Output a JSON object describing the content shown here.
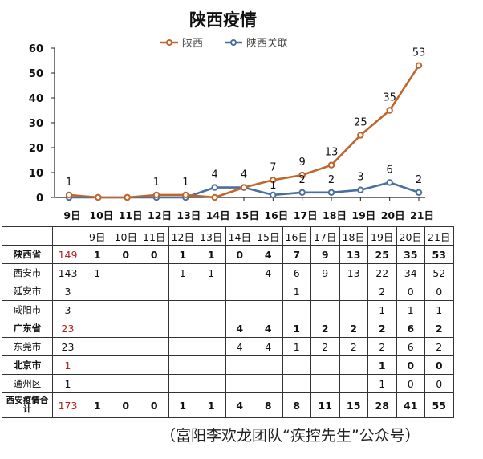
{
  "chart_data": {
    "type": "line",
    "title": "陕西疫情",
    "categories": [
      "9日",
      "10日",
      "11日",
      "12日",
      "13日",
      "14日",
      "15日",
      "16日",
      "17日",
      "18日",
      "19日",
      "20日",
      "21日"
    ],
    "ylim": [
      0,
      60
    ],
    "yticks": [
      0,
      10,
      20,
      30,
      40,
      50,
      60
    ],
    "grid": false,
    "legend_position": "top",
    "series": [
      {
        "name": "陕西",
        "color": "#c0662b",
        "values": [
          1,
          0,
          0,
          1,
          1,
          0,
          4,
          7,
          9,
          13,
          25,
          35,
          53
        ],
        "labels": [
          "1",
          "",
          "",
          "1",
          "1",
          "",
          "4",
          "7",
          "9",
          "13",
          "25",
          "35",
          "53"
        ]
      },
      {
        "name": "陕西关联",
        "color": "#4a6f9d",
        "values": [
          0,
          0,
          0,
          0,
          0,
          4,
          4,
          1,
          2,
          2,
          3,
          6,
          2
        ],
        "labels": [
          "",
          "",
          "",
          "",
          "",
          "4",
          "",
          "1",
          "2",
          "2",
          "3",
          "6",
          "2"
        ]
      }
    ]
  },
  "table": {
    "days": [
      "9日",
      "10日",
      "11日",
      "12日",
      "13日",
      "14日",
      "15日",
      "16日",
      "17日",
      "18日",
      "19日",
      "20日",
      "21日"
    ],
    "rows": [
      {
        "name": "陕西省",
        "total": "149",
        "red": true,
        "type": "prov",
        "cells": [
          "1",
          "0",
          "0",
          "1",
          "1",
          "0",
          "4",
          "7",
          "9",
          "13",
          "25",
          "35",
          "53"
        ]
      },
      {
        "name": "西安市",
        "total": "143",
        "red": false,
        "type": "city",
        "cells": [
          "1",
          "",
          "",
          "1",
          "1",
          "",
          "4",
          "6",
          "9",
          "13",
          "22",
          "34",
          "52"
        ]
      },
      {
        "name": "延安市",
        "total": "3",
        "red": false,
        "type": "city",
        "cells": [
          "",
          "",
          "",
          "",
          "",
          "",
          "",
          "1",
          "",
          "",
          "2",
          "0",
          "0"
        ]
      },
      {
        "name": "咸阳市",
        "total": "3",
        "red": false,
        "type": "city",
        "cells": [
          "",
          "",
          "",
          "",
          "",
          "",
          "",
          "",
          "",
          "",
          "1",
          "1",
          "1"
        ]
      },
      {
        "name": "广东省",
        "total": "23",
        "red": true,
        "type": "prov",
        "cells": [
          "",
          "",
          "",
          "",
          "",
          "4",
          "4",
          "1",
          "2",
          "2",
          "2",
          "6",
          "2"
        ]
      },
      {
        "name": "东莞市",
        "total": "23",
        "red": false,
        "type": "city",
        "cells": [
          "",
          "",
          "",
          "",
          "",
          "4",
          "4",
          "1",
          "2",
          "2",
          "2",
          "6",
          "2"
        ]
      },
      {
        "name": "北京市",
        "total": "1",
        "red": true,
        "type": "prov",
        "cells": [
          "",
          "",
          "",
          "",
          "",
          "",
          "",
          "",
          "",
          "",
          "1",
          "0",
          "0"
        ]
      },
      {
        "name": "通州区",
        "total": "1",
        "red": false,
        "type": "city",
        "cells": [
          "",
          "",
          "",
          "",
          "",
          "",
          "",
          "",
          "",
          "",
          "1",
          "0",
          "0"
        ]
      },
      {
        "name": "西安疫情合计",
        "total": "173",
        "red": true,
        "type": "prov",
        "cells": [
          "1",
          "0",
          "0",
          "1",
          "1",
          "4",
          "8",
          "8",
          "11",
          "15",
          "28",
          "41",
          "55"
        ]
      }
    ]
  },
  "footnote": "（富阳李欢龙团队“疾控先生”公众号）"
}
